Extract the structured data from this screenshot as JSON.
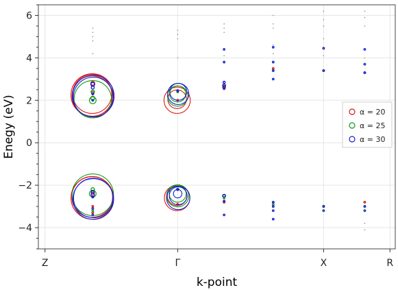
{
  "chart_data": {
    "type": "scatter",
    "title": "",
    "xlabel": "k-point",
    "ylabel": "Enegy (eV)",
    "xticks": [
      {
        "label": "Z",
        "x": 0
      },
      {
        "label": "Γ",
        "x": 1
      },
      {
        "label": "X",
        "x": 2.1
      },
      {
        "label": "R",
        "x": 2.6
      }
    ],
    "xlim": [
      -0.05,
      2.64
    ],
    "yticks": [
      -4,
      -2,
      0,
      2,
      4,
      6
    ],
    "ylim": [
      -5.0,
      6.5
    ],
    "grid": true,
    "legend_position": "right",
    "series": [
      {
        "name": "α = 20",
        "color": "#dd1111",
        "points": [
          [
            0.36,
            2.25,
            1.0
          ],
          [
            0.36,
            2.2,
            0.95
          ],
          [
            0.36,
            2.3,
            0.92
          ],
          [
            0.36,
            2.8,
            0.09
          ],
          [
            0.36,
            2.35,
            0.06
          ],
          [
            0.36,
            -2.6,
            1.0
          ],
          [
            0.36,
            -2.55,
            0.96
          ],
          [
            0.36,
            -2.35,
            0.08
          ],
          [
            0.36,
            -3.0,
            0.03
          ],
          [
            0.36,
            -3.3,
            0.02
          ],
          [
            1.0,
            2.0,
            0.62
          ],
          [
            1.0,
            2.05,
            0.44
          ],
          [
            1.0,
            2.0,
            0.02
          ],
          [
            1.0,
            2.45,
            0.04
          ],
          [
            1.0,
            -2.6,
            0.6
          ],
          [
            1.0,
            -2.5,
            0.46
          ],
          [
            1.0,
            -2.9,
            0.02
          ],
          [
            1.0,
            -2.2,
            0.05
          ],
          [
            1.35,
            2.65,
            0.06
          ],
          [
            1.35,
            2.55,
            0.04
          ],
          [
            1.35,
            -2.5,
            0.07
          ],
          [
            1.35,
            -2.8,
            0.04
          ],
          [
            1.72,
            3.5,
            0.015
          ],
          [
            1.72,
            -2.8,
            0.015
          ],
          [
            1.72,
            -3.0,
            0.015
          ],
          [
            2.1,
            3.4,
            0.015
          ],
          [
            2.1,
            -3.0,
            0.015
          ],
          [
            2.41,
            3.3,
            0.015
          ],
          [
            2.41,
            -2.8,
            0.015
          ]
        ]
      },
      {
        "name": "α = 25",
        "color": "#119911",
        "points": [
          [
            0.36,
            2.05,
            0.88
          ],
          [
            0.36,
            2.0,
            0.16
          ],
          [
            0.36,
            2.1,
            0.09
          ],
          [
            0.36,
            2.4,
            0.08
          ],
          [
            0.36,
            -2.45,
            0.98
          ],
          [
            0.36,
            -2.4,
            0.16
          ],
          [
            0.36,
            -2.2,
            0.08
          ],
          [
            0.36,
            -3.2,
            0.02
          ],
          [
            1.0,
            2.2,
            0.48
          ],
          [
            1.0,
            2.3,
            0.38
          ],
          [
            1.0,
            2.4,
            0.04
          ],
          [
            1.0,
            -2.5,
            0.52
          ],
          [
            1.0,
            -2.4,
            0.4
          ],
          [
            1.0,
            -2.2,
            0.05
          ],
          [
            1.35,
            2.6,
            0.05
          ],
          [
            1.35,
            -2.5,
            0.07
          ],
          [
            1.35,
            -2.6,
            0.04
          ],
          [
            1.72,
            3.4,
            0.015
          ],
          [
            1.72,
            -2.9,
            0.015
          ],
          [
            2.1,
            3.4,
            0.015
          ],
          [
            2.1,
            -3.0,
            0.015
          ],
          [
            2.41,
            3.3,
            0.015
          ],
          [
            2.41,
            -3.0,
            0.015
          ]
        ]
      },
      {
        "name": "α = 30",
        "color": "#1122cc",
        "points": [
          [
            0.36,
            2.2,
            0.98
          ],
          [
            0.36,
            2.15,
            0.94
          ],
          [
            0.36,
            2.75,
            0.09
          ],
          [
            0.36,
            2.6,
            0.07
          ],
          [
            0.36,
            2.0,
            0.03
          ],
          [
            0.36,
            2.3,
            0.04
          ],
          [
            0.36,
            -2.65,
            0.96
          ],
          [
            0.36,
            -2.6,
            0.93
          ],
          [
            0.36,
            -2.45,
            0.08
          ],
          [
            0.36,
            -2.3,
            0.06
          ],
          [
            0.36,
            -2.55,
            0.05
          ],
          [
            0.36,
            -3.4,
            0.02
          ],
          [
            0.36,
            -3.1,
            0.02
          ],
          [
            1.0,
            2.3,
            0.5
          ],
          [
            1.0,
            2.4,
            0.4
          ],
          [
            1.0,
            2.45,
            0.04
          ],
          [
            1.0,
            2.45,
            0.025
          ],
          [
            1.0,
            -2.6,
            0.55
          ],
          [
            1.0,
            -2.5,
            0.42
          ],
          [
            1.0,
            -2.4,
            0.2
          ],
          [
            1.0,
            -2.2,
            0.04
          ],
          [
            1.35,
            2.6,
            0.06
          ],
          [
            1.35,
            2.85,
            0.05
          ],
          [
            1.35,
            2.7,
            0.07
          ],
          [
            1.35,
            -2.5,
            0.06
          ],
          [
            1.35,
            -2.75,
            0.04
          ],
          [
            1.35,
            -3.4,
            0.015
          ],
          [
            1.35,
            4.4,
            0.01
          ],
          [
            1.35,
            3.8,
            0.01
          ],
          [
            1.72,
            3.4,
            0.02
          ],
          [
            1.72,
            3.0,
            0.02
          ],
          [
            1.72,
            3.8,
            0.01
          ],
          [
            1.72,
            4.5,
            0.01
          ],
          [
            1.72,
            -2.8,
            0.02
          ],
          [
            1.72,
            -3.0,
            0.02
          ],
          [
            1.72,
            -3.2,
            0.015
          ],
          [
            1.72,
            -3.6,
            0.01
          ],
          [
            2.1,
            3.4,
            0.02
          ],
          [
            2.1,
            4.45,
            0.015
          ],
          [
            2.1,
            -3.0,
            0.02
          ],
          [
            2.1,
            -3.2,
            0.015
          ],
          [
            2.41,
            3.3,
            0.02
          ],
          [
            2.41,
            4.4,
            0.015
          ],
          [
            2.41,
            3.7,
            0.01
          ],
          [
            2.41,
            -3.2,
            0.02
          ],
          [
            2.41,
            -3.0,
            0.015
          ]
        ]
      }
    ],
    "faint_points": [
      [
        0.36,
        5.4
      ],
      [
        0.36,
        5.2
      ],
      [
        0.36,
        5.0
      ],
      [
        0.36,
        4.8
      ],
      [
        0.36,
        4.2
      ],
      [
        1.0,
        5.3
      ],
      [
        1.0,
        5.1
      ],
      [
        1.0,
        4.9
      ],
      [
        1.0,
        4.0
      ],
      [
        1.35,
        5.6
      ],
      [
        1.35,
        5.4
      ],
      [
        1.35,
        5.2
      ],
      [
        1.35,
        4.1
      ],
      [
        1.72,
        6.0
      ],
      [
        1.72,
        5.6
      ],
      [
        1.72,
        5.4
      ],
      [
        1.72,
        4.6
      ],
      [
        1.72,
        4.2
      ],
      [
        2.1,
        6.2
      ],
      [
        2.1,
        5.8
      ],
      [
        2.1,
        5.5
      ],
      [
        2.1,
        4.9
      ],
      [
        2.1,
        4.1
      ],
      [
        2.41,
        6.2
      ],
      [
        2.41,
        5.9
      ],
      [
        2.41,
        5.5
      ],
      [
        2.41,
        4.0
      ],
      [
        2.41,
        -4.1
      ],
      [
        2.41,
        -3.8
      ]
    ]
  }
}
